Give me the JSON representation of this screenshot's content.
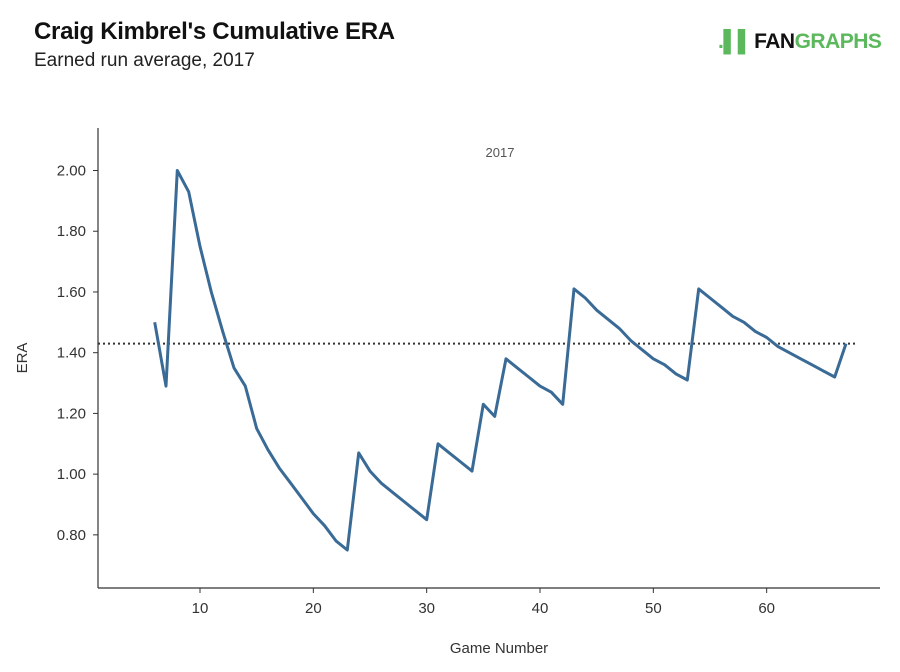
{
  "header": {
    "title": "Craig Kimbrel's Cumulative ERA",
    "subtitle": "Earned run average, 2017"
  },
  "logo": {
    "mark": ".▌▌",
    "part1": "FAN",
    "part2": "GRAPHS"
  },
  "colors": {
    "line": "#3a6a96",
    "average": "#333333",
    "logo_green": "#5cb85c"
  },
  "chart_data": {
    "type": "line",
    "title": "Craig Kimbrel's Cumulative ERA",
    "annotation": "2017",
    "xlabel": "Game Number",
    "ylabel": "ERA",
    "xlim": [
      1,
      70
    ],
    "ylim": [
      0.625,
      2.14
    ],
    "xticks": [
      10,
      20,
      30,
      40,
      50,
      60
    ],
    "yticks": [
      0.8,
      1.0,
      1.2,
      1.4,
      1.6,
      1.8,
      2.0
    ],
    "ytick_labels": [
      "0.80",
      "1.00",
      "1.20",
      "1.40",
      "1.60",
      "1.80",
      "2.00"
    ],
    "grid": false,
    "average_line": 1.43,
    "series": [
      {
        "name": "2017",
        "x": [
          6,
          7,
          8,
          9,
          10,
          11,
          12,
          13,
          14,
          15,
          16,
          17,
          18,
          19,
          20,
          21,
          22,
          23,
          24,
          25,
          26,
          27,
          28,
          29,
          30,
          31,
          32,
          33,
          34,
          35,
          36,
          37,
          38,
          39,
          40,
          41,
          42,
          43,
          44,
          45,
          46,
          47,
          48,
          49,
          50,
          51,
          52,
          53,
          54,
          55,
          56,
          57,
          58,
          59,
          60,
          61,
          62,
          63,
          64,
          65,
          66,
          67
        ],
        "values": [
          1.5,
          1.29,
          2.0,
          1.93,
          1.75,
          1.6,
          1.47,
          1.35,
          1.29,
          1.15,
          1.08,
          1.02,
          0.97,
          0.92,
          0.87,
          0.83,
          0.78,
          0.75,
          1.07,
          1.01,
          0.97,
          0.94,
          0.91,
          0.88,
          0.85,
          1.1,
          1.07,
          1.04,
          1.01,
          1.23,
          1.19,
          1.38,
          1.35,
          1.32,
          1.29,
          1.27,
          1.23,
          1.61,
          1.58,
          1.54,
          1.51,
          1.48,
          1.44,
          1.41,
          1.38,
          1.36,
          1.33,
          1.31,
          1.61,
          1.58,
          1.55,
          1.52,
          1.5,
          1.47,
          1.45,
          1.42,
          1.4,
          1.38,
          1.36,
          1.34,
          1.32,
          1.43
        ]
      }
    ]
  }
}
